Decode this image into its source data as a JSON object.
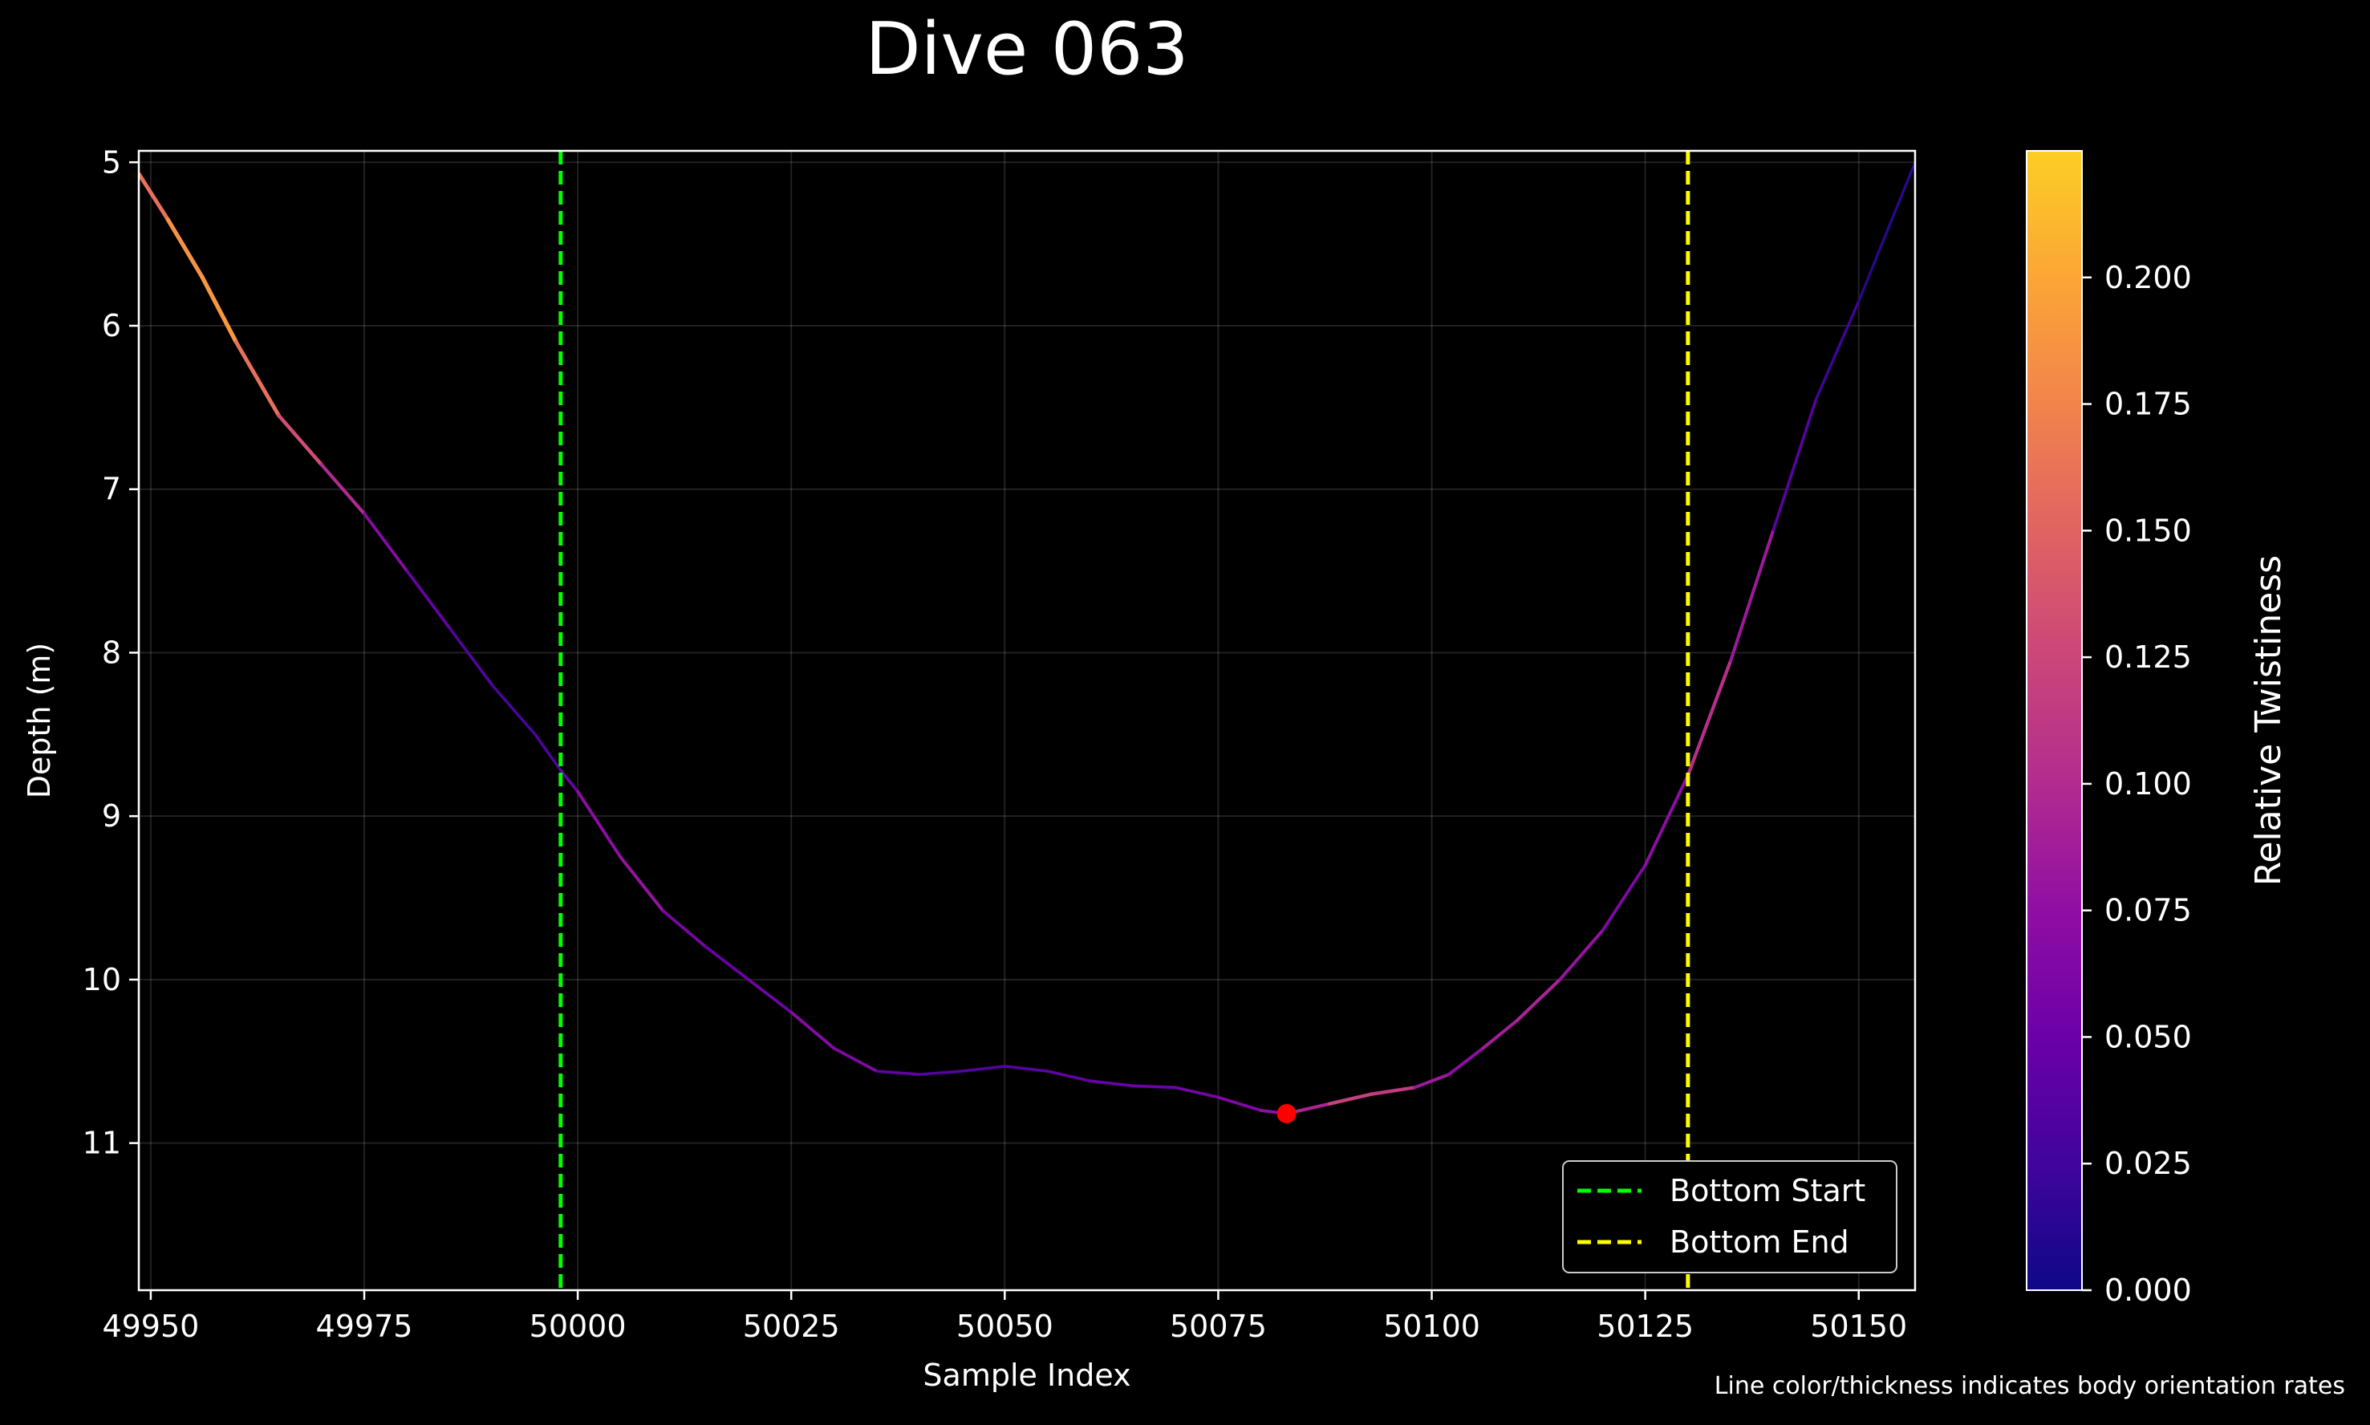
{
  "chart_data": {
    "type": "line",
    "title": "Dive 063",
    "xlabel": "Sample Index",
    "ylabel": "Depth (m)",
    "xlim": [
      49948.6,
      50156.6
    ],
    "ylim": [
      11.9,
      4.93
    ],
    "y_inverted": true,
    "grid": true,
    "xticks": [
      "49950",
      "49975",
      "50000",
      "50025",
      "50050",
      "50075",
      "50100",
      "50125",
      "50150"
    ],
    "yticks": [
      "5",
      "6",
      "7",
      "8",
      "9",
      "10",
      "11"
    ],
    "series": [
      {
        "name": "",
        "x": [
          49948.6,
          49952,
          49956,
          49960,
          49965,
          49970,
          49975,
          49980,
          49985,
          49990,
          49995,
          49998,
          50000,
          50005,
          50010,
          50015,
          50020,
          50025,
          50030,
          50035,
          50040,
          50045,
          50050,
          50055,
          50060,
          50065,
          50070,
          50075,
          50080,
          50083,
          50088,
          50093,
          50098,
          50102,
          50106,
          50110,
          50115,
          50120,
          50125,
          50130,
          50135,
          50140,
          50145,
          50150,
          50156.6
        ],
        "y": [
          5.07,
          5.35,
          5.7,
          6.1,
          6.55,
          6.85,
          7.15,
          7.5,
          7.85,
          8.2,
          8.5,
          8.72,
          8.85,
          9.25,
          9.58,
          9.8,
          10.0,
          10.2,
          10.42,
          10.56,
          10.58,
          10.56,
          10.53,
          10.56,
          10.62,
          10.65,
          10.66,
          10.72,
          10.8,
          10.82,
          10.76,
          10.7,
          10.66,
          10.58,
          10.42,
          10.25,
          10.0,
          9.7,
          9.3,
          8.75,
          8.05,
          7.25,
          6.45,
          5.85,
          5.0
        ],
        "twistiness": [
          0.15,
          0.17,
          0.2,
          0.18,
          0.14,
          0.12,
          0.08,
          0.06,
          0.04,
          0.035,
          0.03,
          0.04,
          0.06,
          0.09,
          0.07,
          0.05,
          0.05,
          0.06,
          0.08,
          0.05,
          0.04,
          0.035,
          0.04,
          0.04,
          0.05,
          0.05,
          0.055,
          0.06,
          0.07,
          0.08,
          0.11,
          0.13,
          0.1,
          0.07,
          0.08,
          0.1,
          0.09,
          0.07,
          0.06,
          0.09,
          0.12,
          0.05,
          0.03,
          0.02,
          0.01
        ]
      }
    ],
    "vlines": [
      {
        "label": "Bottom Start",
        "x": 49998,
        "color": "#00ff00",
        "style": "dashed"
      },
      {
        "label": "Bottom End",
        "x": 50130,
        "color": "#ffff00",
        "style": "dashed"
      }
    ],
    "marker": {
      "x": 50083,
      "y": 10.82,
      "color": "#ff0000"
    },
    "legend_position": "lower-right",
    "colorbar": {
      "label": "Relative Twistiness",
      "min": 0.0,
      "max": 0.225,
      "colormap": "plasma",
      "ticks": [
        "0.000",
        "0.025",
        "0.050",
        "0.075",
        "0.100",
        "0.125",
        "0.150",
        "0.175",
        "0.200"
      ]
    },
    "caption": "Line color/thickness indicates body orientation rates"
  }
}
